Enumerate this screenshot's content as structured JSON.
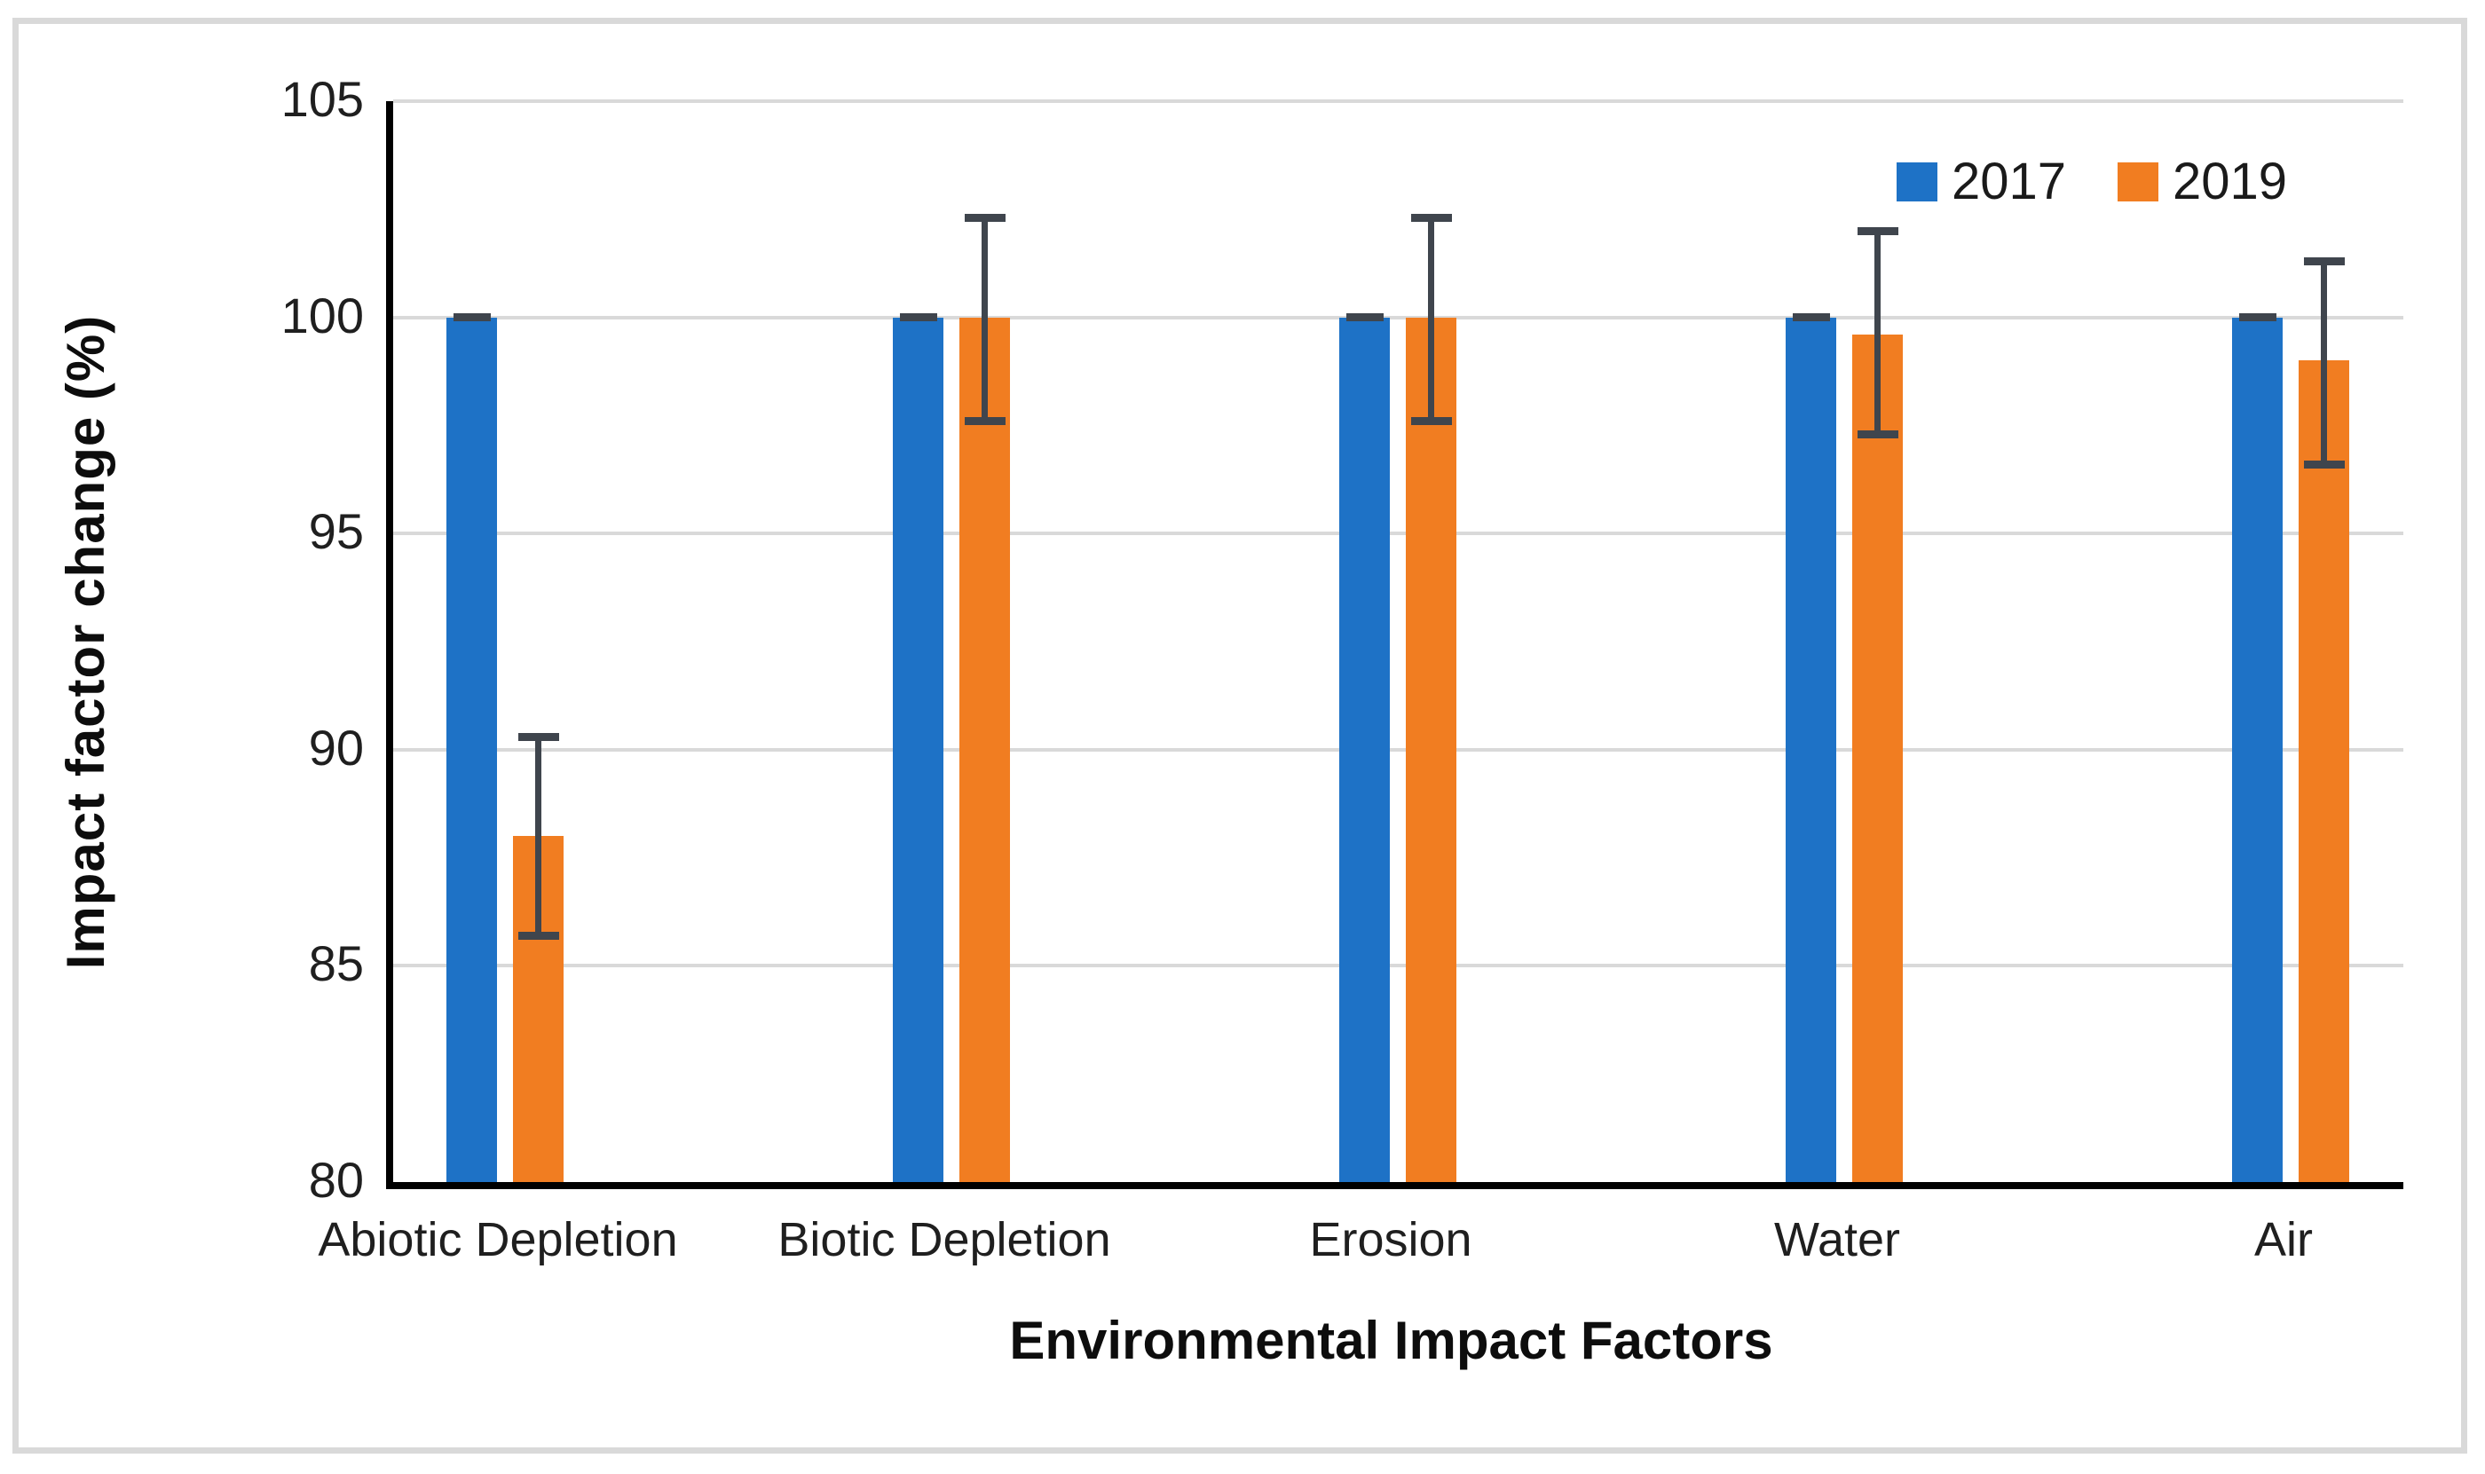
{
  "figure": {
    "background": "#ffffff",
    "border_color": "#d9d9d9"
  },
  "chart_data": {
    "type": "bar",
    "title": "",
    "categories": [
      "Abiotic Depletion",
      "Biotic Depletion",
      "Erosion",
      "Water",
      "Air"
    ],
    "series": [
      {
        "name": "2017",
        "color": "#1e72c6",
        "values": [
          100,
          100,
          100,
          100,
          100
        ],
        "error_plus": [
          0,
          0,
          0,
          0,
          0
        ],
        "error_minus": [
          0,
          0,
          0,
          0,
          0
        ]
      },
      {
        "name": "2019",
        "color": "#f17d21",
        "values": [
          88.0,
          100,
          100,
          99.6,
          99.0
        ],
        "error_plus": [
          2.3,
          2.3,
          2.3,
          2.4,
          2.3
        ],
        "error_minus": [
          2.3,
          2.4,
          2.4,
          2.3,
          2.4
        ]
      }
    ],
    "xlabel": "Environmental Impact Factors",
    "ylabel": "Impact factor change (%)",
    "ylim": [
      80,
      105
    ],
    "yticks": [
      80,
      85,
      90,
      95,
      100,
      105
    ],
    "grid": true,
    "gridline_color": "#d9d9d9",
    "axis_color": "#000000",
    "error_bar_color": "#3f454d",
    "legend": {
      "position": "top-right",
      "entries": [
        "2017",
        "2019"
      ]
    }
  }
}
